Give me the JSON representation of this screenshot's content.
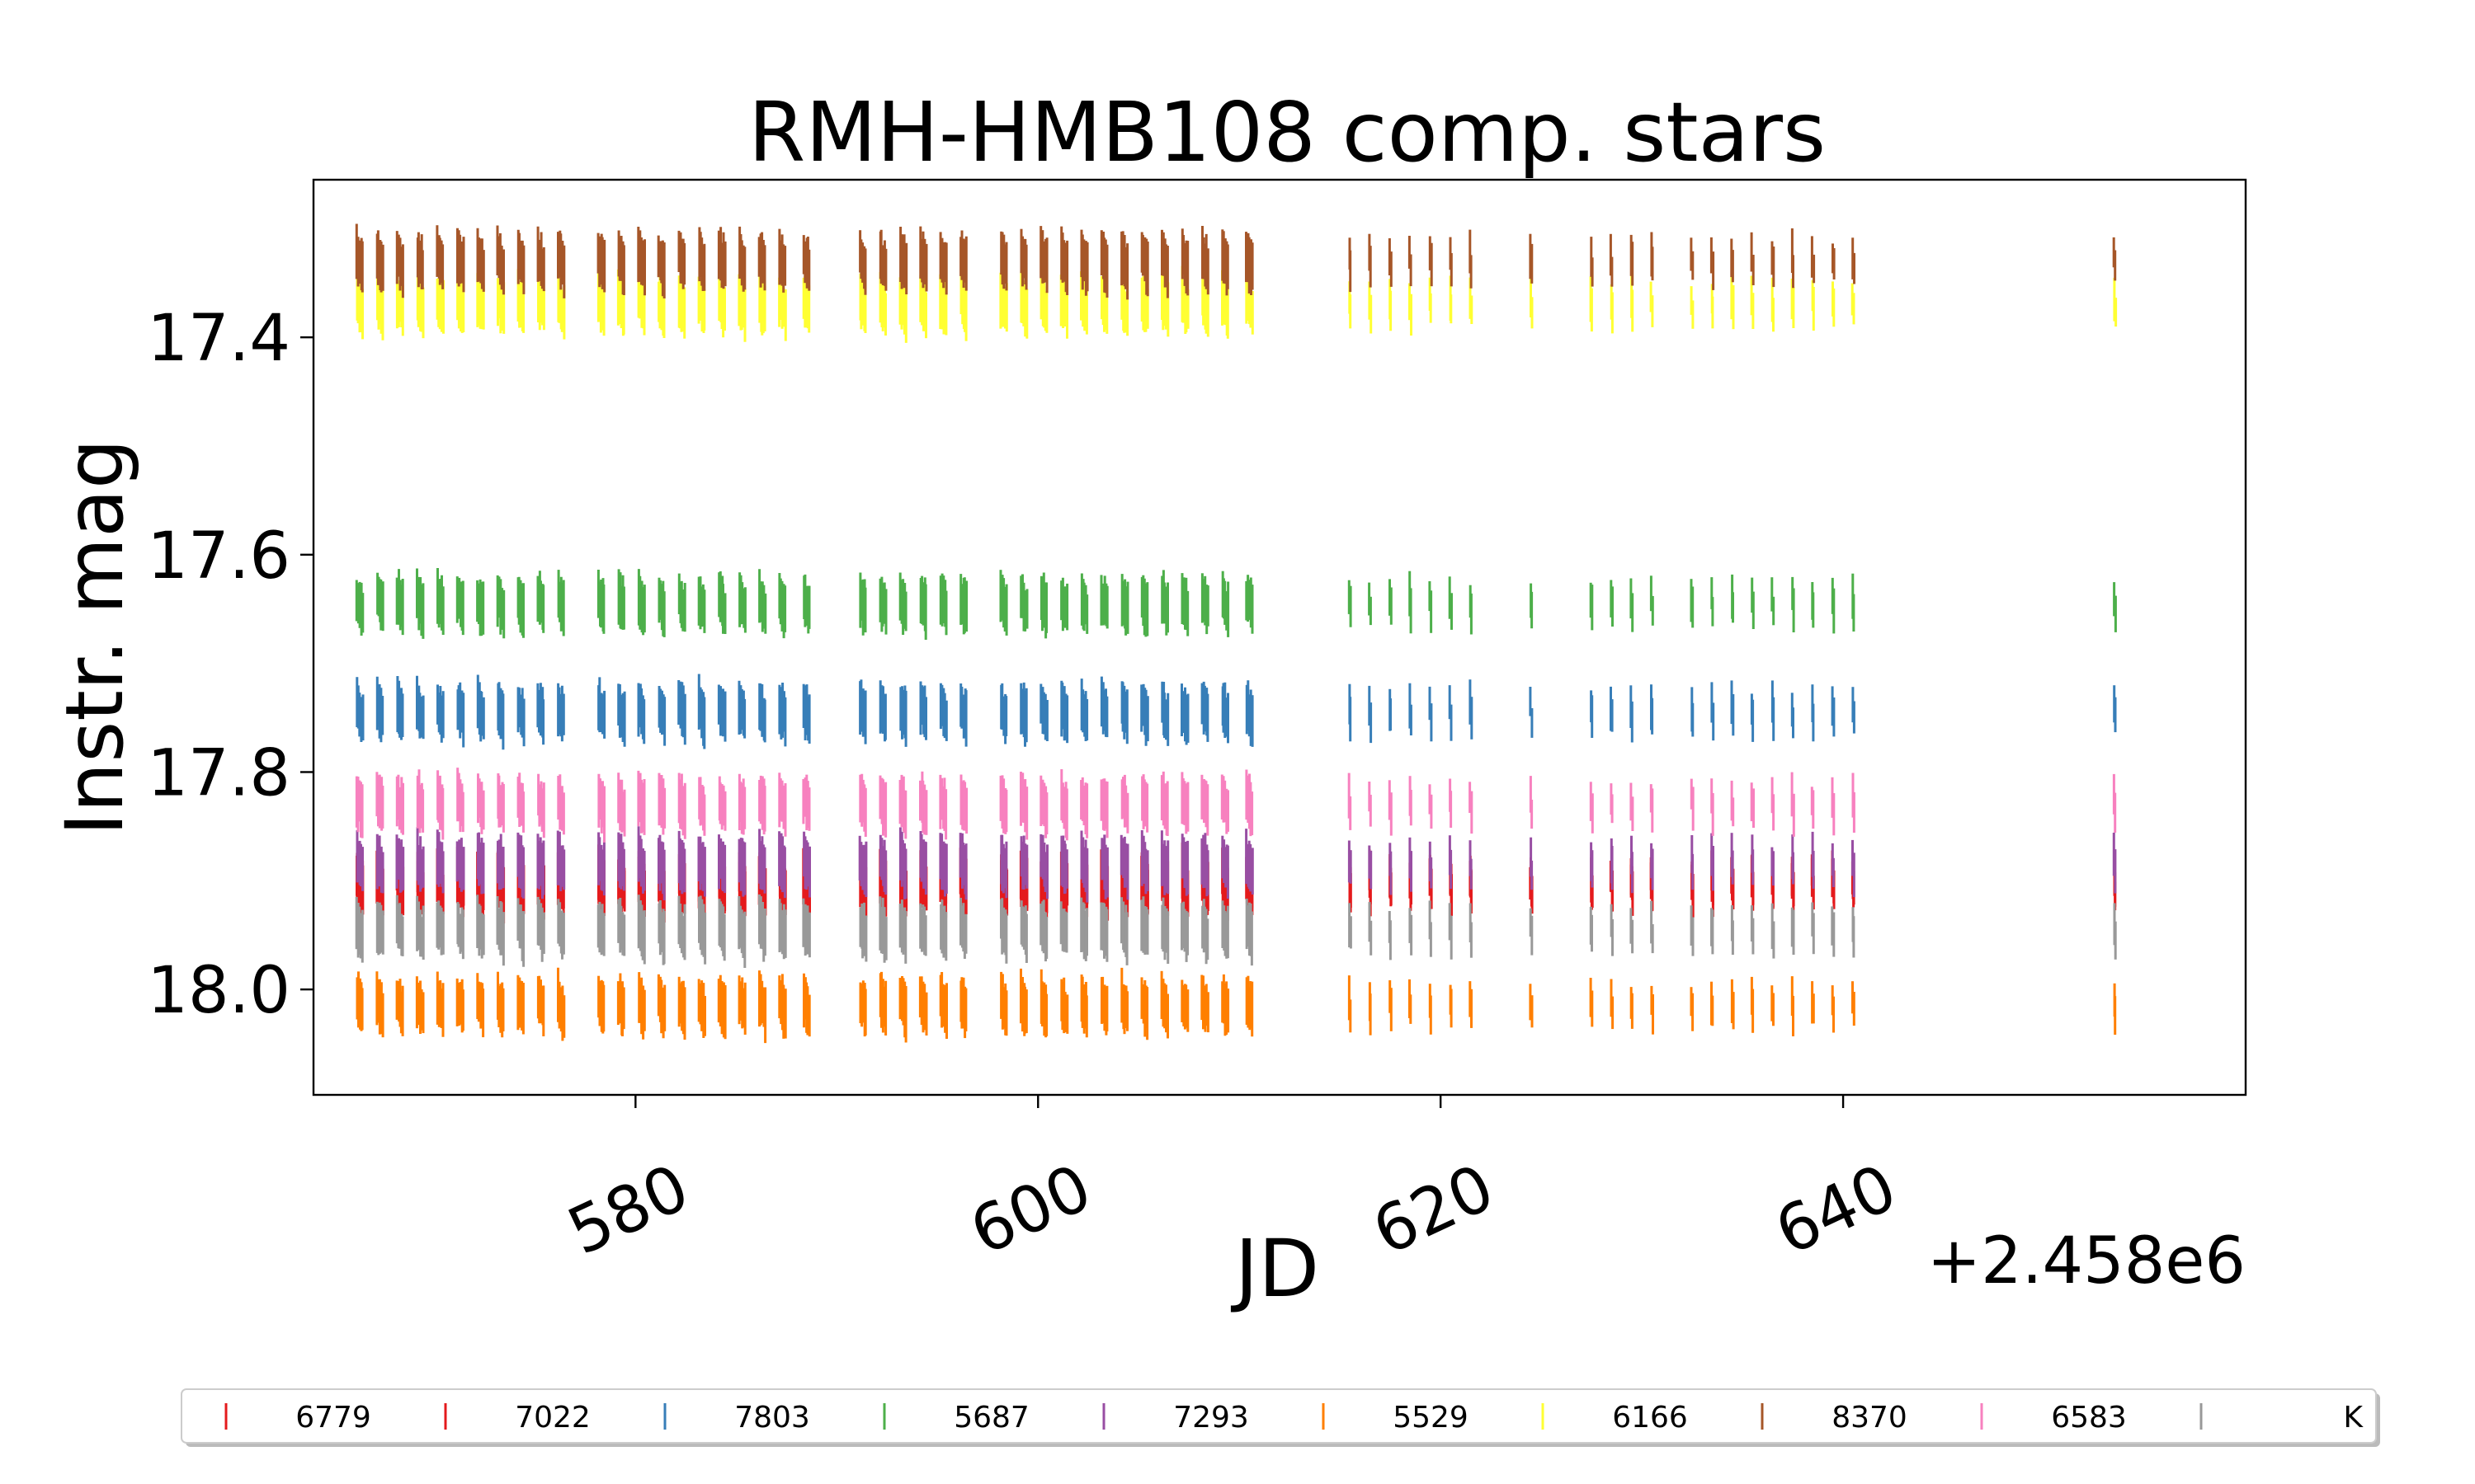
{
  "chart_data": {
    "type": "scatter",
    "title": "RMH-HMB108 comp. stars",
    "xlabel": "JD",
    "ylabel": "Instr. mag",
    "x_offset_label": "+2.458e6",
    "xlim": [
      2458564.0,
      2458660.0
    ],
    "ylim": [
      18.097,
      17.255
    ],
    "y_inverted": true,
    "xticks": [
      2458580,
      2458600,
      2458620,
      2458640
    ],
    "xtick_labels": [
      "580",
      "600",
      "620",
      "640"
    ],
    "yticks": [
      17.4,
      17.6,
      17.8,
      18.0
    ],
    "ytick_labels": [
      "17.4",
      "17.6",
      "17.8",
      "18.0"
    ],
    "grid": false,
    "legend_placement": "bottom",
    "legend_marker": "|",
    "observation_nights": [
      2458566.3,
      2458567.3,
      2458568.3,
      2458569.3,
      2458570.3,
      2458571.3,
      2458572.3,
      2458573.3,
      2458574.3,
      2458575.3,
      2458576.3,
      2458578.3,
      2458579.3,
      2458580.3,
      2458581.3,
      2458582.3,
      2458583.3,
      2458584.3,
      2458585.3,
      2458586.3,
      2458587.3,
      2458588.5,
      2458591.3,
      2458592.3,
      2458593.3,
      2458594.3,
      2458595.3,
      2458596.3,
      2458598.3,
      2458599.3,
      2458600.3,
      2458601.3,
      2458602.3,
      2458603.3,
      2458604.3,
      2458605.3,
      2458606.3,
      2458607.3,
      2458608.3,
      2458609.3,
      2458610.5,
      2458615.5,
      2458616.5,
      2458617.5,
      2458618.5,
      2458619.5,
      2458620.5,
      2458621.5,
      2458624.5,
      2458627.5,
      2458628.5,
      2458629.5,
      2458630.5,
      2458632.5,
      2458633.5,
      2458634.5,
      2458635.5,
      2458636.5,
      2458637.5,
      2458638.5,
      2458639.5,
      2458640.5,
      2458653.5
    ],
    "series": [
      {
        "name": "6779",
        "color": "#e41a1c",
        "mag": 17.905
      },
      {
        "name": "7022",
        "color": "#e41a1c",
        "mag": 17.9
      },
      {
        "name": "7803",
        "color": "#377eb8",
        "mag": 17.745
      },
      {
        "name": "5687",
        "color": "#4daf4a",
        "mag": 17.645
      },
      {
        "name": "7293",
        "color": "#984ea3",
        "mag": 17.885
      },
      {
        "name": "5529",
        "color": "#ff7f00",
        "mag": 18.015
      },
      {
        "name": "6166",
        "color": "#ffff33",
        "mag": 17.37
      },
      {
        "name": "8370",
        "color": "#a65628",
        "mag": 17.33
      },
      {
        "name": "6583",
        "color": "#f781bf",
        "mag": 17.83
      },
      {
        "name": "K",
        "color": "#999999",
        "mag": 17.945
      }
    ]
  }
}
